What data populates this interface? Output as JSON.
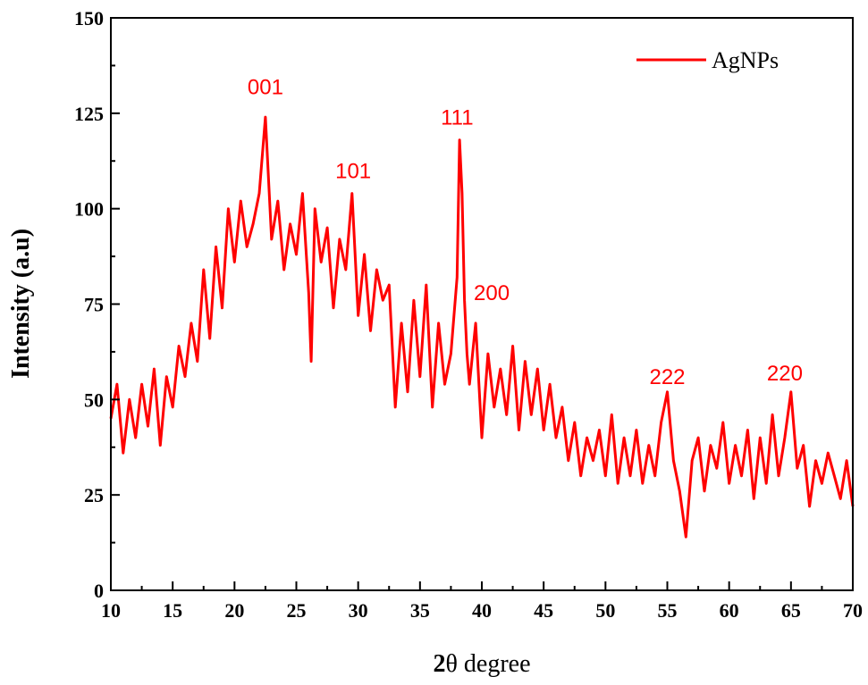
{
  "chart_data": {
    "type": "line",
    "title": "",
    "xlabel_prefix": "2",
    "xlabel_theta": "θ",
    "xlabel_suffix": " degree",
    "ylabel": "Intensity (a.u)",
    "xlim": [
      10,
      70
    ],
    "ylim": [
      0,
      150
    ],
    "x_ticks": [
      10,
      15,
      20,
      25,
      30,
      35,
      40,
      45,
      50,
      55,
      60,
      65,
      70
    ],
    "y_ticks": [
      0,
      25,
      50,
      75,
      100,
      125,
      150
    ],
    "legend_position": "top-right",
    "series": [
      {
        "name": "AgNPs",
        "color": "#ff0000",
        "x": [
          10,
          10.5,
          11,
          11.5,
          12,
          12.5,
          13,
          13.5,
          14,
          14.5,
          15,
          15.5,
          16,
          16.5,
          17,
          17.5,
          18,
          18.5,
          19,
          19.5,
          20,
          20.5,
          21,
          21.5,
          22,
          22.5,
          23,
          23.5,
          24,
          24.5,
          25,
          25.5,
          26,
          26.2,
          26.5,
          27,
          27.5,
          28,
          28.5,
          29,
          29.5,
          30,
          30.5,
          31,
          31.5,
          32,
          32.5,
          33,
          33.5,
          34,
          34.5,
          35,
          35.5,
          36,
          36.5,
          37,
          37.5,
          38,
          38.2,
          38.4,
          38.6,
          38.8,
          39,
          39.5,
          40,
          40.5,
          41,
          41.5,
          42,
          42.5,
          43,
          43.5,
          44,
          44.5,
          45,
          45.5,
          46,
          46.5,
          47,
          47.5,
          48,
          48.5,
          49,
          49.5,
          50,
          50.5,
          51,
          51.5,
          52,
          52.5,
          53,
          53.5,
          54,
          54.5,
          55,
          55.5,
          56,
          56.5,
          57,
          57.5,
          58,
          58.5,
          59,
          59.5,
          60,
          60.5,
          61,
          61.5,
          62,
          62.5,
          63,
          63.5,
          64,
          64.5,
          65,
          65.5,
          66,
          66.5,
          67,
          67.5,
          68,
          68.5,
          69,
          69.5,
          70
        ],
        "values": [
          45,
          54,
          36,
          50,
          40,
          54,
          43,
          58,
          38,
          56,
          48,
          64,
          56,
          70,
          60,
          84,
          66,
          90,
          74,
          100,
          86,
          102,
          90,
          96,
          104,
          124,
          92,
          102,
          84,
          96,
          88,
          104,
          78,
          60,
          100,
          86,
          95,
          74,
          92,
          84,
          104,
          72,
          88,
          68,
          84,
          76,
          80,
          48,
          70,
          52,
          76,
          56,
          80,
          48,
          70,
          54,
          62,
          82,
          118,
          104,
          76,
          62,
          54,
          70,
          40,
          62,
          48,
          58,
          46,
          64,
          42,
          60,
          46,
          58,
          42,
          54,
          40,
          48,
          34,
          44,
          30,
          40,
          34,
          42,
          30,
          46,
          28,
          40,
          30,
          42,
          28,
          38,
          30,
          44,
          52,
          34,
          26,
          14,
          34,
          40,
          26,
          38,
          32,
          44,
          28,
          38,
          30,
          42,
          24,
          40,
          28,
          46,
          30,
          40,
          52,
          32,
          38,
          22,
          34,
          28,
          36,
          30,
          24,
          34,
          22
        ]
      }
    ],
    "peak_labels": [
      {
        "text": "001",
        "x": 22.5,
        "y": 130
      },
      {
        "text": "101",
        "x": 29.6,
        "y": 108
      },
      {
        "text": "111",
        "x": 38.0,
        "y": 122
      },
      {
        "text": "200",
        "x": 40.8,
        "y": 76
      },
      {
        "text": "222",
        "x": 55.0,
        "y": 54
      },
      {
        "text": "220",
        "x": 64.5,
        "y": 55
      }
    ]
  }
}
